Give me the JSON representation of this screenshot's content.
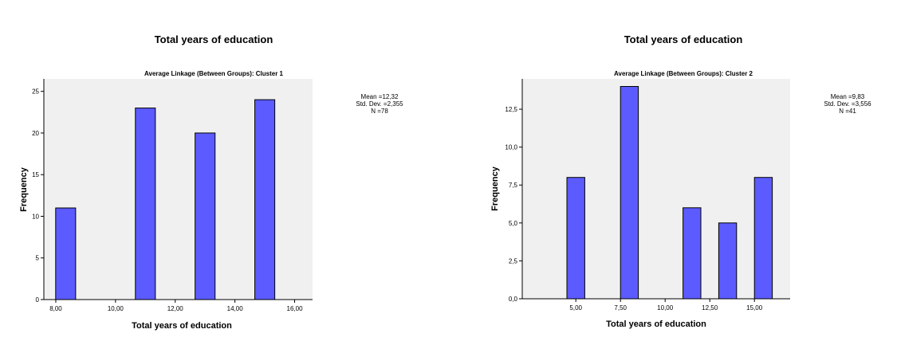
{
  "chart_data": [
    {
      "type": "bar",
      "title": "Total years of education",
      "subtitle": "Average Linkage (Between Groups): Cluster 1",
      "xlabel": "Total years of education",
      "ylabel": "Frequency",
      "xlim": [
        7.6,
        16.6
      ],
      "ylim": [
        0,
        26.5
      ],
      "bin_width": 0.67,
      "x_ticks": [
        8,
        10,
        12,
        14,
        16
      ],
      "x_tick_labels": [
        "8,00",
        "10,00",
        "12,00",
        "14,00",
        "16,00"
      ],
      "y_ticks": [
        0,
        5,
        10,
        15,
        20,
        25
      ],
      "y_tick_labels": [
        "0",
        "5",
        "10",
        "15",
        "20",
        "25"
      ],
      "bars": [
        {
          "x": 8.33,
          "value": 11
        },
        {
          "x": 11.0,
          "value": 23
        },
        {
          "x": 13.0,
          "value": 20
        },
        {
          "x": 15.0,
          "value": 24
        }
      ],
      "stats": [
        "Mean =12,32",
        "Std. Dev. =2,355",
        "N =78"
      ],
      "bar_color": "#5b5bff",
      "plot_background": "#f0f0f0"
    },
    {
      "type": "bar",
      "title": "Total years of education",
      "subtitle": "Average Linkage (Between Groups): Cluster 2",
      "xlabel": "Total years of education",
      "ylabel": "Frequency",
      "xlim": [
        2.0,
        17.0
      ],
      "ylim": [
        0,
        14.5
      ],
      "bin_width": 1.0,
      "x_ticks": [
        5,
        7.5,
        10,
        12.5,
        15
      ],
      "x_tick_labels": [
        "5,00",
        "7,50",
        "10,00",
        "12,50",
        "15,00"
      ],
      "y_ticks": [
        0,
        2.5,
        5,
        7.5,
        10,
        12.5
      ],
      "y_tick_labels": [
        "0,0",
        "2,5",
        "5,0",
        "7,5",
        "10,0",
        "12,5"
      ],
      "bars": [
        {
          "x": 5.0,
          "value": 8
        },
        {
          "x": 8.0,
          "value": 14
        },
        {
          "x": 11.5,
          "value": 6
        },
        {
          "x": 13.5,
          "value": 5
        },
        {
          "x": 15.5,
          "value": 8
        }
      ],
      "stats": [
        "Mean =9,83",
        "Std. Dev. =3,556",
        "N =41"
      ],
      "bar_color": "#5b5bff",
      "plot_background": "#f0f0f0"
    }
  ]
}
